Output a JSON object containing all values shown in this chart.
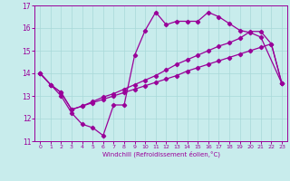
{
  "xlabel": "Windchill (Refroidissement éolien,°C)",
  "bg_color": "#c8ecec",
  "grid_color": "#a8d8d8",
  "line_color": "#990099",
  "ylim": [
    11,
    17
  ],
  "xlim": [
    -0.5,
    23.5
  ],
  "yticks": [
    11,
    12,
    13,
    14,
    15,
    16,
    17
  ],
  "xticks": [
    0,
    1,
    2,
    3,
    4,
    5,
    6,
    7,
    8,
    9,
    10,
    11,
    12,
    13,
    14,
    15,
    16,
    17,
    18,
    19,
    20,
    21,
    22,
    23
  ],
  "line1_x": [
    0,
    1,
    2,
    3,
    4,
    5,
    6,
    7,
    8,
    9,
    10,
    11,
    12,
    13,
    14,
    15,
    16,
    17,
    18,
    19,
    20,
    21,
    23
  ],
  "line1_y": [
    14.0,
    13.5,
    13.0,
    12.25,
    11.75,
    11.6,
    11.25,
    12.6,
    12.6,
    14.8,
    15.9,
    16.7,
    16.15,
    16.3,
    16.3,
    16.3,
    16.7,
    16.5,
    16.2,
    15.9,
    15.8,
    15.6,
    13.55
  ],
  "line2_x": [
    0,
    1,
    2,
    3,
    4,
    5,
    6,
    7,
    8,
    9,
    10,
    11,
    12,
    13,
    14,
    15,
    16,
    17,
    18,
    19,
    20,
    21,
    22,
    23
  ],
  "line2_y": [
    14.0,
    13.5,
    13.15,
    12.4,
    12.55,
    12.7,
    12.85,
    13.0,
    13.15,
    13.3,
    13.45,
    13.6,
    13.75,
    13.9,
    14.1,
    14.25,
    14.4,
    14.55,
    14.7,
    14.85,
    15.0,
    15.15,
    15.3,
    13.55
  ],
  "line3_x": [
    0,
    1,
    2,
    3,
    4,
    5,
    6,
    7,
    8,
    9,
    10,
    11,
    12,
    13,
    14,
    15,
    16,
    17,
    18,
    19,
    20,
    21,
    22,
    23
  ],
  "line3_y": [
    14.0,
    13.5,
    13.15,
    12.4,
    12.55,
    12.75,
    12.95,
    13.1,
    13.3,
    13.5,
    13.7,
    13.9,
    14.15,
    14.4,
    14.6,
    14.8,
    15.0,
    15.2,
    15.35,
    15.55,
    15.85,
    15.85,
    15.3,
    13.55
  ]
}
